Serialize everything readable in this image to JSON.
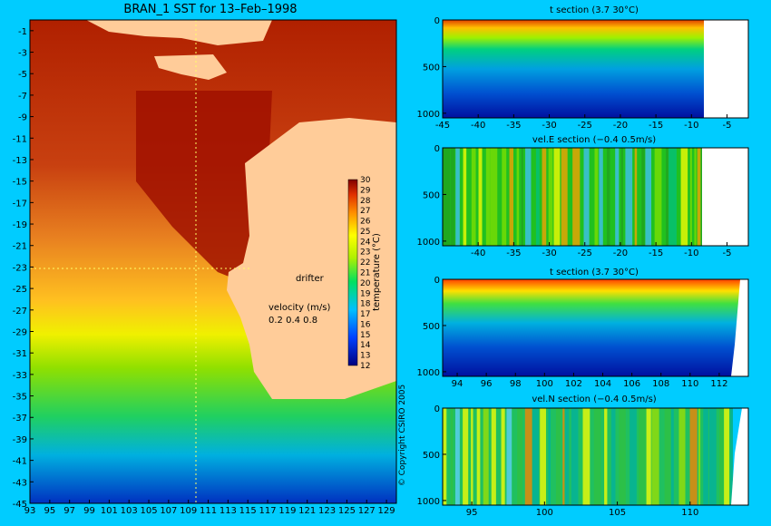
{
  "chart_data": [
    {
      "type": "heatmap",
      "title": "BRAN_1 SST for 13–Feb–1998",
      "x_ticks": [
        "93",
        "95",
        "97",
        "99",
        "101",
        "103",
        "105",
        "107",
        "109",
        "111",
        "113",
        "115",
        "117",
        "119",
        "121",
        "123",
        "125",
        "127",
        "129"
      ],
      "y_ticks": [
        "-1",
        "-3",
        "-5",
        "-7",
        "-9",
        "-11",
        "-13",
        "-15",
        "-17",
        "-19",
        "-21",
        "-23",
        "-25",
        "-27",
        "-29",
        "-31",
        "-33",
        "-35",
        "-37",
        "-39",
        "-41",
        "-43",
        "-45"
      ],
      "xlim": [
        93,
        130
      ],
      "ylim": [
        -45,
        0
      ],
      "colorbar": {
        "label": "temperature (°C)",
        "ticks": [
          "30",
          "29",
          "28",
          "27",
          "26",
          "25",
          "24",
          "23",
          "22",
          "21",
          "20",
          "19",
          "18",
          "17",
          "16",
          "15",
          "14",
          "13",
          "12"
        ],
        "range": [
          12,
          30
        ]
      },
      "annotations": {
        "drifter": "drifter",
        "velocity_title": "velocity (m/s)",
        "velocity_scale": "0.2 0.4 0.8",
        "copyright": "© Copyright CSIRO 2005"
      }
    },
    {
      "type": "heatmap",
      "title": "t section (3.7        30°C)",
      "x_ticks": [
        "-45",
        "-40",
        "-35",
        "-30",
        "-25",
        "-20",
        "-15",
        "-10",
        "-5"
      ],
      "y_ticks": [
        "0",
        "500",
        "1000"
      ],
      "xlim": [
        -45,
        -2
      ],
      "ylim": [
        1050,
        0
      ]
    },
    {
      "type": "heatmap",
      "title": "vel.E section (−0.4        0.5m/s)",
      "x_ticks": [
        "-40",
        "-35",
        "-30",
        "-25",
        "-20",
        "-15",
        "-10",
        "-5"
      ],
      "y_ticks": [
        "0",
        "500",
        "1000"
      ],
      "xlim": [
        -45,
        -2
      ],
      "ylim": [
        1050,
        0
      ]
    },
    {
      "type": "heatmap",
      "title": "t section (3.7        30°C)",
      "x_ticks": [
        "94",
        "96",
        "98",
        "100",
        "102",
        "104",
        "106",
        "108",
        "110",
        "112"
      ],
      "y_ticks": [
        "0",
        "500",
        "1000"
      ],
      "xlim": [
        93,
        114
      ],
      "ylim": [
        1050,
        0
      ]
    },
    {
      "type": "heatmap",
      "title": "vel.N section (−0.4        0.5m/s)",
      "x_ticks": [
        "95",
        "100",
        "105",
        "110"
      ],
      "y_ticks": [
        "0",
        "500",
        "1000"
      ],
      "xlim": [
        93,
        114
      ],
      "ylim": [
        1050,
        0
      ]
    }
  ]
}
